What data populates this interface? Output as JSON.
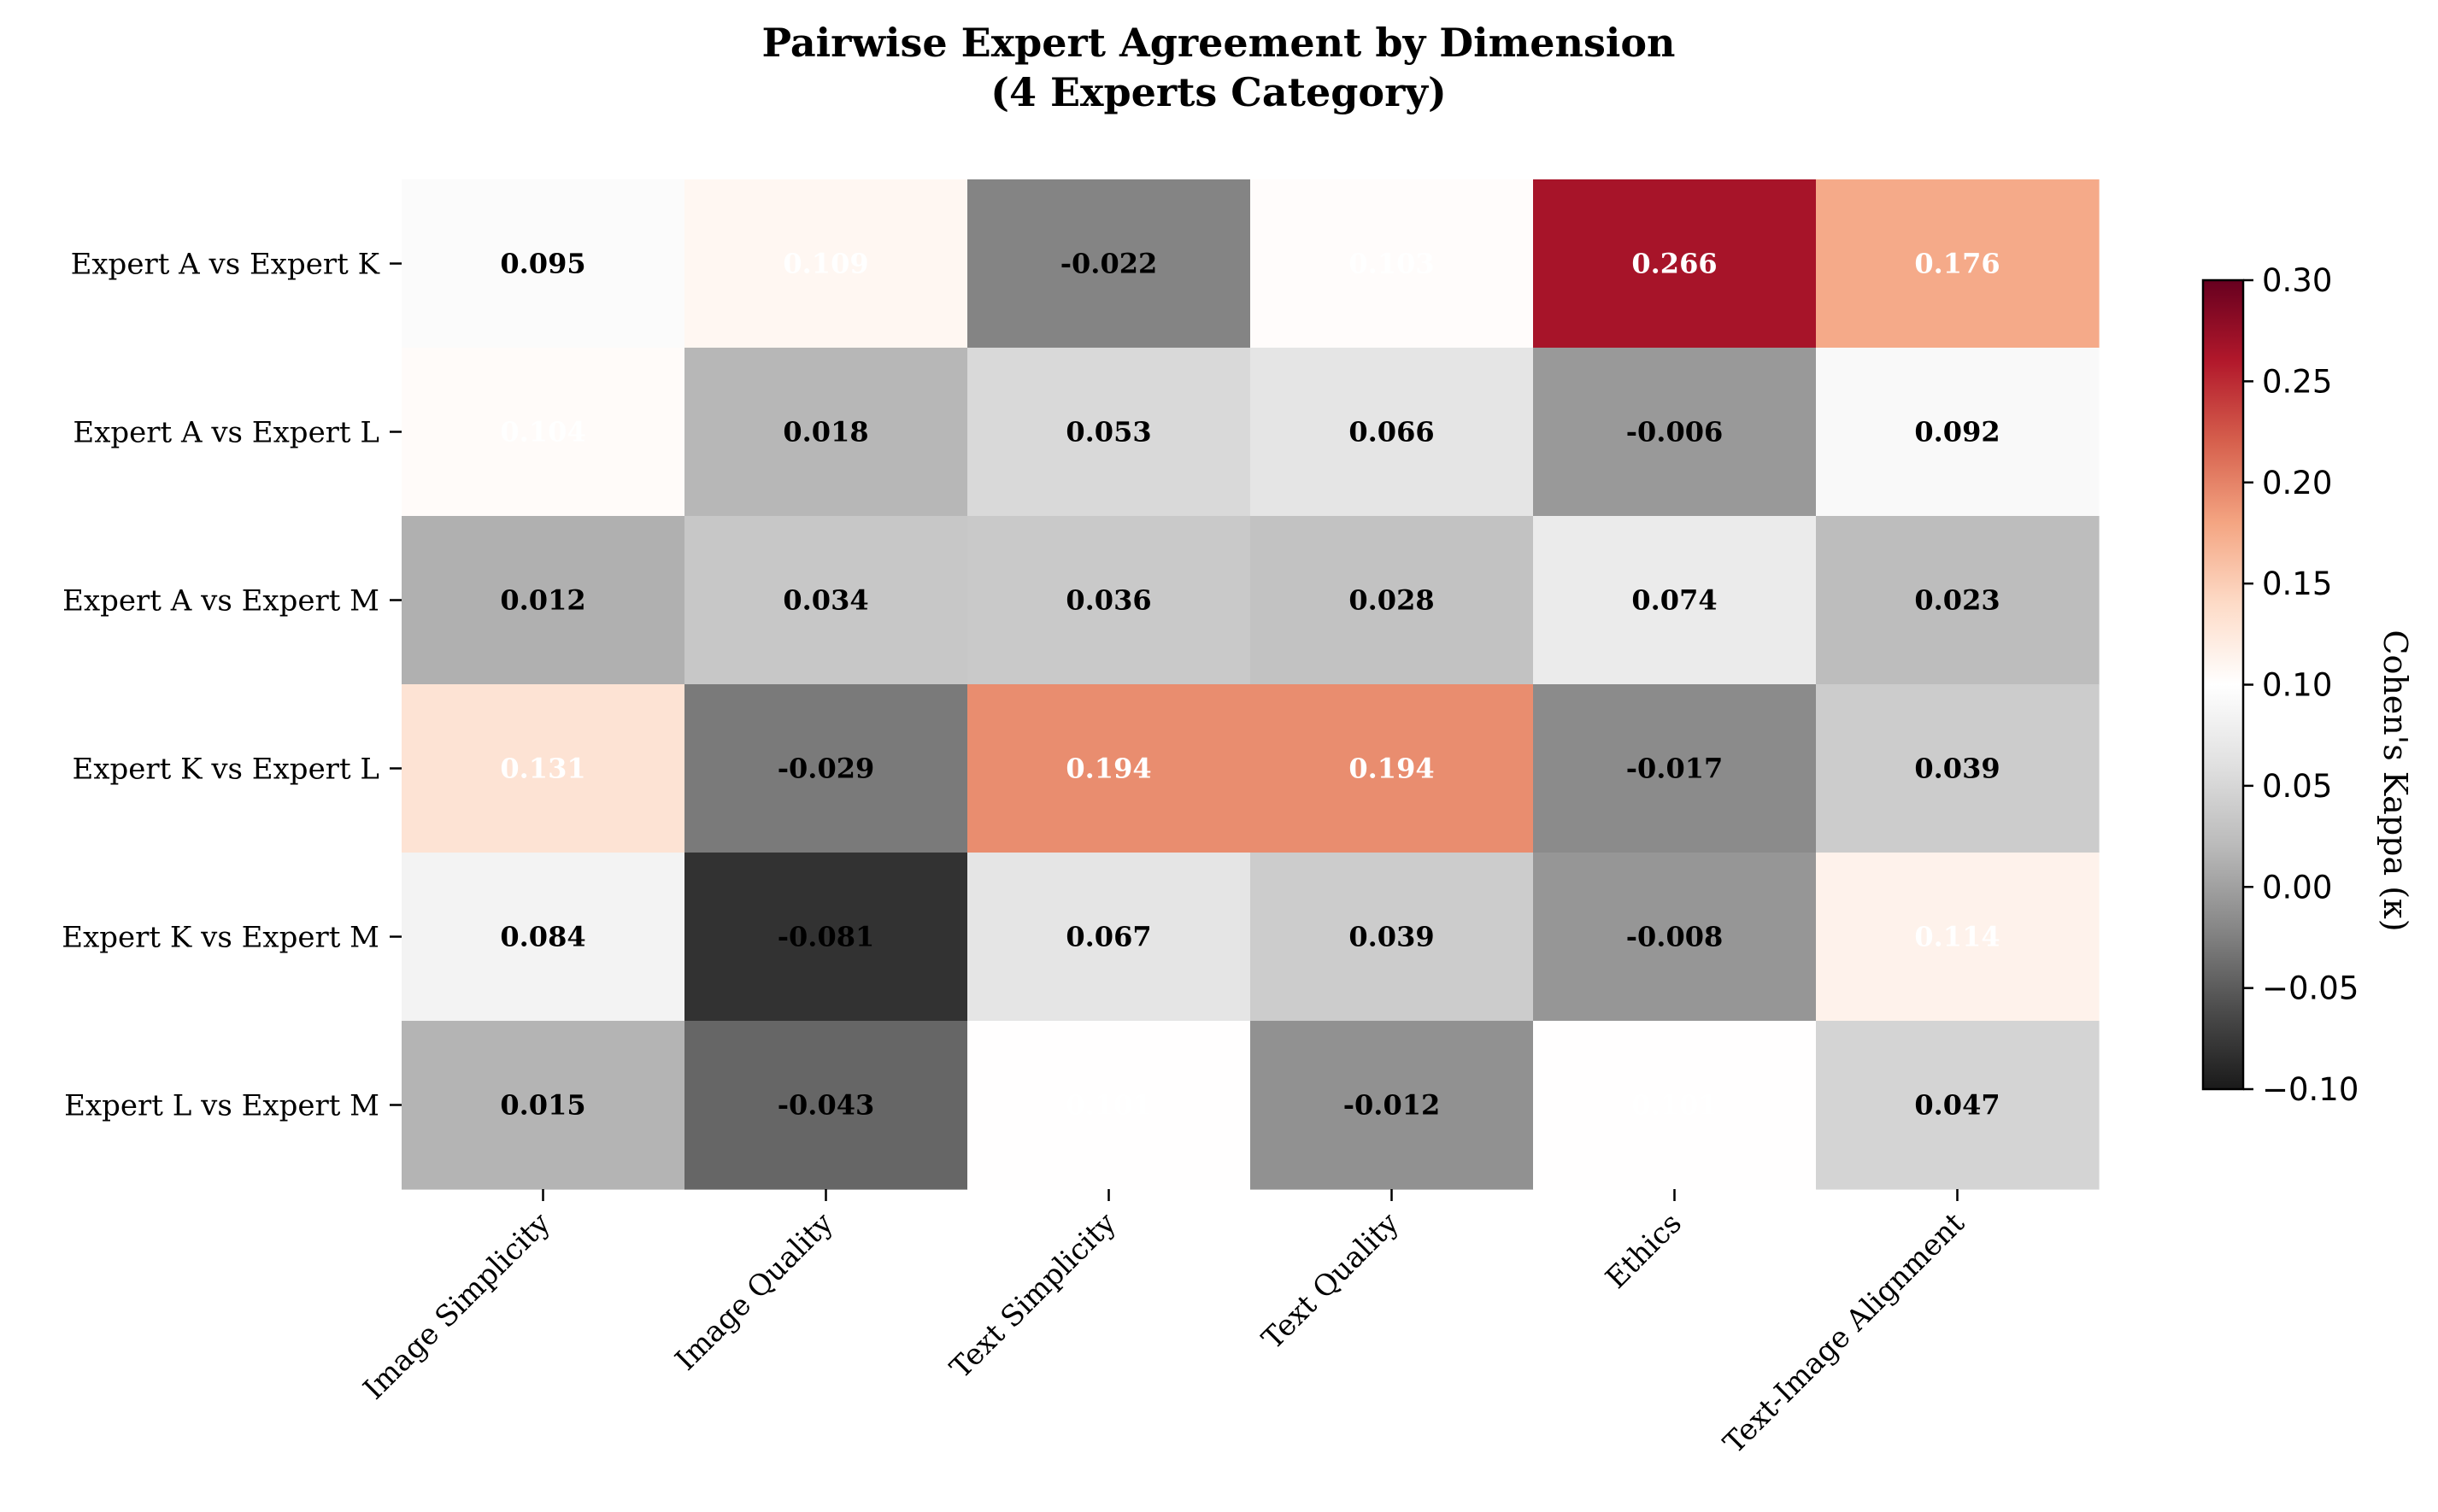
{
  "chart_data": {
    "type": "heatmap",
    "title": "Pairwise Expert Agreement by Dimension",
    "subtitle": "(4 Experts Category)",
    "rows": [
      "Expert A vs Expert K",
      "Expert A vs Expert L",
      "Expert A vs Expert M",
      "Expert K vs Expert L",
      "Expert K vs Expert M",
      "Expert L vs Expert M"
    ],
    "columns": [
      "Image Simplicity",
      "Image Quality",
      "Text Simplicity",
      "Text Quality",
      "Ethics",
      "Text-Image Alignment"
    ],
    "values": [
      [
        0.095,
        0.109,
        -0.022,
        0.103,
        0.266,
        0.176
      ],
      [
        0.104,
        0.018,
        0.053,
        0.066,
        -0.006,
        0.092
      ],
      [
        0.012,
        0.034,
        0.036,
        0.028,
        0.074,
        0.023
      ],
      [
        0.131,
        -0.029,
        0.194,
        0.194,
        -0.017,
        0.039
      ],
      [
        0.084,
        -0.081,
        0.067,
        0.039,
        -0.008,
        0.114
      ],
      [
        0.015,
        -0.043,
        0.101,
        -0.012,
        0.101,
        0.047
      ]
    ],
    "colorbar": {
      "label": "Cohen's Kappa (κ)",
      "range": [
        -0.1,
        0.3
      ],
      "ticks": [
        "0.30",
        "0.25",
        "0.20",
        "0.15",
        "0.10",
        "0.05",
        "0.00",
        "−0.05",
        "−0.10"
      ],
      "tick_values": [
        0.3,
        0.25,
        0.2,
        0.15,
        0.1,
        0.05,
        0.0,
        -0.05,
        -0.1
      ],
      "colormap": [
        "#1a1a1a",
        "#4d4d4d",
        "#878787",
        "#bababa",
        "#e0e0e0",
        "#ffffff",
        "#fddbc7",
        "#f4a582",
        "#d6604d",
        "#b2182b",
        "#67001f"
      ]
    }
  }
}
